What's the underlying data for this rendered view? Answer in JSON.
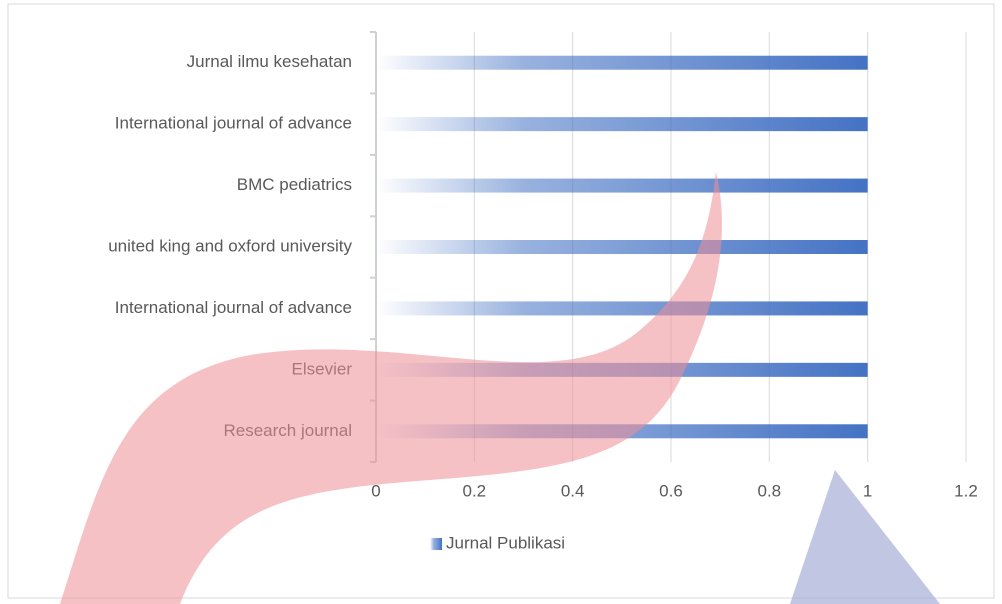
{
  "chart_data": {
    "type": "bar",
    "orientation": "horizontal",
    "categories": [
      "Jurnal ilmu kesehatan",
      "International journal of advance",
      "BMC pediatrics",
      "united king and oxford university",
      "International journal of advance",
      "Elsevier",
      "Research journal"
    ],
    "series": [
      {
        "name": "Jurnal Publikasi",
        "color": "#4472c4",
        "values": [
          1,
          1,
          1,
          1,
          1,
          1,
          1
        ]
      }
    ],
    "xlim": [
      0,
      1.2
    ],
    "xticks": [
      0,
      0.2,
      0.4,
      0.6,
      0.8,
      1,
      1.2
    ],
    "grid": true,
    "legend": "bottom"
  }
}
